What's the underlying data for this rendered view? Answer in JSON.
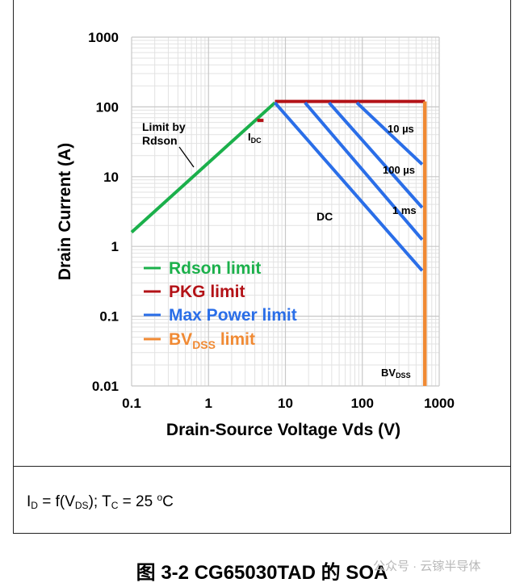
{
  "figure_caption": "图 3-2  CG65030TAD 的 SOA",
  "watermark": "公众号 · 云镓半导体",
  "conditions": {
    "id_label": "I",
    "id_sub": "D",
    "func_text": " = f(V",
    "vds_sub": "DS",
    "sep_text": "); T",
    "tc_sub": "C",
    "temp_text": " = 25 ",
    "deg": "o",
    "unit": "C"
  },
  "colors": {
    "rdson": "#1bb04b",
    "pkg": "#b31217",
    "power": "#2a6ee8",
    "bvdss": "#f08a34",
    "grid_major": "#c8c8c8",
    "grid_minor": "#e2e2e2"
  },
  "chart_data": {
    "type": "line",
    "title": "",
    "xlabel": "Drain-Source Voltage Vds (V)",
    "ylabel": "Drain Current (A)",
    "xscale": "log",
    "yscale": "log",
    "xlim": [
      0.1,
      1000
    ],
    "ylim": [
      0.01,
      1000
    ],
    "xticks": [
      0.1,
      1,
      10,
      100,
      1000
    ],
    "xtick_labels": [
      "0.1",
      "1",
      "10",
      "100",
      "1000"
    ],
    "yticks": [
      0.01,
      0.1,
      1,
      10,
      100,
      1000
    ],
    "ytick_labels": [
      "0.01",
      "0.1",
      "1",
      "10",
      "100",
      "1000"
    ],
    "grid": true,
    "series": [
      {
        "name": "Rdson limit",
        "color_key": "rdson",
        "x": [
          0.1,
          7.3
        ],
        "y": [
          1.6,
          115
        ]
      },
      {
        "name": "PKG limit",
        "color_key": "pkg",
        "x": [
          7.3,
          650
        ],
        "y": [
          120,
          120
        ]
      },
      {
        "name": "I_DC",
        "color_key": "pkg",
        "x": [
          4.3,
          5.2
        ],
        "y": [
          64,
          64
        ]
      },
      {
        "name": "DC",
        "color_key": "power",
        "x": [
          7.3,
          600
        ],
        "y": [
          115,
          0.45
        ]
      },
      {
        "name": "1 ms",
        "color_key": "power",
        "x": [
          18,
          600
        ],
        "y": [
          115,
          1.25
        ]
      },
      {
        "name": "100 µs",
        "color_key": "power",
        "x": [
          37,
          600
        ],
        "y": [
          115,
          3.6
        ]
      },
      {
        "name": "10 µs",
        "color_key": "power",
        "x": [
          85,
          600
        ],
        "y": [
          115,
          15
        ]
      },
      {
        "name": "BVdss limit",
        "color_key": "bvdss",
        "x": [
          650,
          650
        ],
        "y": [
          0.01,
          120
        ]
      }
    ],
    "annotations": [
      {
        "id": "rdson-line1",
        "text": "Limit by"
      },
      {
        "id": "rdson-line2",
        "text": "Rdson"
      },
      {
        "id": "idc",
        "text": "I",
        "sub": "DC"
      },
      {
        "id": "dc",
        "text": "DC"
      },
      {
        "id": "t10us",
        "text": "10 µs"
      },
      {
        "id": "t100us",
        "text": "100 µs"
      },
      {
        "id": "t1ms",
        "text": "1 ms"
      },
      {
        "id": "bvdss",
        "text": "BV",
        "sub": "DSS"
      }
    ],
    "legend": {
      "position": "bottom-left",
      "entries": [
        {
          "text": "Rdson limit",
          "color_key": "rdson"
        },
        {
          "text": "PKG limit",
          "color_key": "pkg"
        },
        {
          "text": "Max Power limit",
          "color_key": "power"
        },
        {
          "text": "BV",
          "sub": "DSS",
          "suffix": " limit",
          "color_key": "bvdss"
        }
      ]
    }
  }
}
